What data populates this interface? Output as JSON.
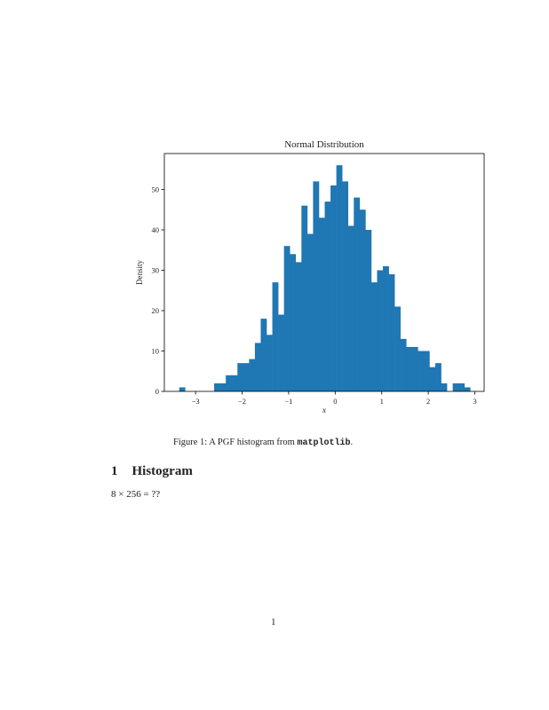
{
  "chart_data": {
    "type": "histogram",
    "title": "Normal Distribution",
    "x_label": "x",
    "y_label": "Density",
    "color": "#1f77b4",
    "bins": [
      -3.35,
      -3.225,
      -3.1,
      -2.975,
      -2.85,
      -2.725,
      -2.6,
      -2.475,
      -2.35,
      -2.225,
      -2.1,
      -1.975,
      -1.85,
      -1.725,
      -1.6,
      -1.475,
      -1.35,
      -1.225,
      -1.1,
      -0.975,
      -0.85,
      -0.725,
      -0.6,
      -0.475,
      -0.35,
      -0.225,
      -0.1,
      0.025,
      0.15,
      0.275,
      0.4,
      0.525,
      0.65,
      0.775,
      0.9,
      1.025,
      1.15,
      1.275,
      1.4,
      1.525,
      1.65,
      1.775,
      1.9,
      2.025,
      2.15,
      2.275,
      2.4,
      2.525,
      2.65,
      2.775,
      2.9
    ],
    "counts": [
      1,
      0,
      0,
      0,
      0,
      0,
      2,
      2,
      4,
      4,
      7,
      7,
      8,
      12,
      18,
      14,
      27,
      19,
      36,
      34,
      32,
      46,
      39,
      52,
      43,
      47,
      51,
      56,
      52,
      41,
      48,
      45,
      40,
      27,
      30,
      31,
      29,
      21,
      13,
      11,
      11,
      10,
      10,
      6,
      7,
      2,
      0,
      2,
      2,
      1
    ],
    "xlim": [
      -3.67,
      3.2
    ],
    "ylim": [
      0,
      58.9
    ],
    "xticks": [
      {
        "value": -3,
        "label": "−3"
      },
      {
        "value": -2,
        "label": "−2"
      },
      {
        "value": -1,
        "label": "−1"
      },
      0,
      1,
      2,
      3
    ],
    "yticks": [
      0,
      10,
      20,
      30,
      40,
      50
    ]
  },
  "document": {
    "caption": {
      "label": "Figure 1:",
      "text": "A PGF histogram from",
      "code": "matplotlib",
      "end": "."
    },
    "section": {
      "number": "1",
      "title": "Histogram"
    },
    "body": "8 × 256 = ??",
    "page_number": "1"
  }
}
